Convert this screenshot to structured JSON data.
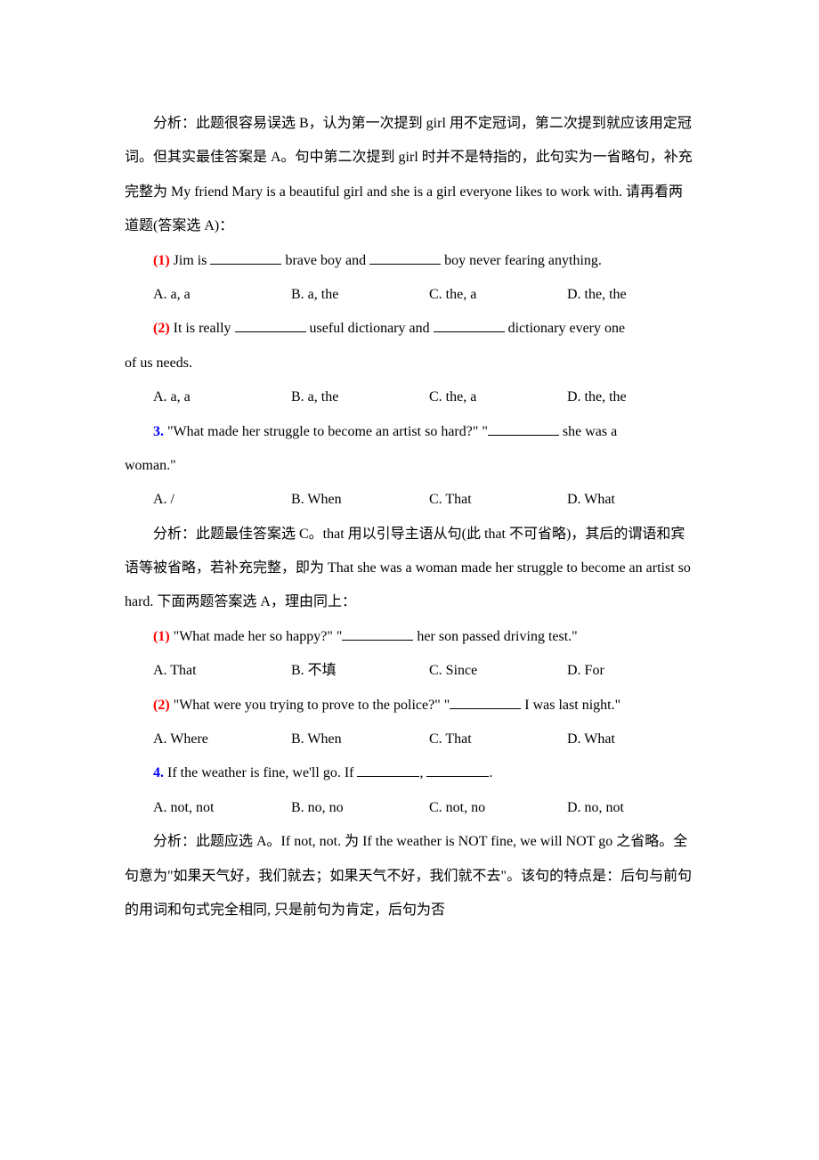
{
  "analysis1": {
    "para1": "分析：此题很容易误选 B，认为第一次提到 girl 用不定冠词，第二次提到就应该用定冠词。但其实最佳答案是 A。句中第二次提到 girl 时并不是特指的，此句实为一省略句，补充完整为 My friend Mary is a beautiful girl and she is a girl everyone likes to work with. 请再看两道题(答案选 A)："
  },
  "q1_1": {
    "num": "(1)",
    "text_before": " Jim is ",
    "text_mid": " brave boy and ",
    "text_after": " boy never fearing anything.",
    "choices": {
      "a": "A. a, a",
      "b": "B. a, the",
      "c": "C. the, a",
      "d": "D. the, the"
    }
  },
  "q1_2": {
    "num": "(2)",
    "text_before": " It is really ",
    "text_mid": " useful dictionary and ",
    "text_after": " dictionary every one",
    "text_cont": "of us needs.",
    "choices": {
      "a": "A. a, a",
      "b": "B. a, the",
      "c": "C. the, a",
      "d": "D. the, the"
    }
  },
  "q3": {
    "num": "3.",
    "text_before": " \"What made her struggle to become an artist so hard?\" \"",
    "text_after": " she was a",
    "text_cont": "woman.\"",
    "choices": {
      "a": "A. /",
      "b": "B. When",
      "c": "C. That",
      "d": "D. What"
    }
  },
  "analysis3": {
    "para": "分析：此题最佳答案选 C。that 用以引导主语从句(此 that 不可省略)，其后的谓语和宾语等被省略，若补充完整，即为 That she was a woman made her struggle to become an artist so hard. 下面两题答案选 A，理由同上："
  },
  "q3_1": {
    "num": "(1)",
    "text_before": " \"What made her so happy?\" \"",
    "text_after": " her son passed driving test.\"",
    "choices": {
      "a": "A. That",
      "b": "B. 不填",
      "c": "C. Since",
      "d": "D. For"
    }
  },
  "q3_2": {
    "num": "(2)",
    "text_before": " \"What were you trying to prove to the police?\" \"",
    "text_after": " I was last night.\"",
    "choices": {
      "a": "A. Where",
      "b": "B. When",
      "c": "C. That",
      "d": "D. What"
    }
  },
  "q4": {
    "num": "4.",
    "text_before": " If the weather is fine, we'll go. If ",
    "text_mid": ", ",
    "text_after": ".",
    "choices": {
      "a": "A. not, not",
      "b": "B. no, no",
      "c": "C. not, no",
      "d": "D. no, not"
    }
  },
  "analysis4": {
    "para": "分析：此题应选 A。If not, not. 为 If the weather is NOT fine, we will NOT go 之省略。全句意为\"如果天气好，我们就去；如果天气不好，我们就不去\"。该句的特点是：后句与前句的用词和句式完全相同, 只是前句为肯定，后句为否"
  }
}
